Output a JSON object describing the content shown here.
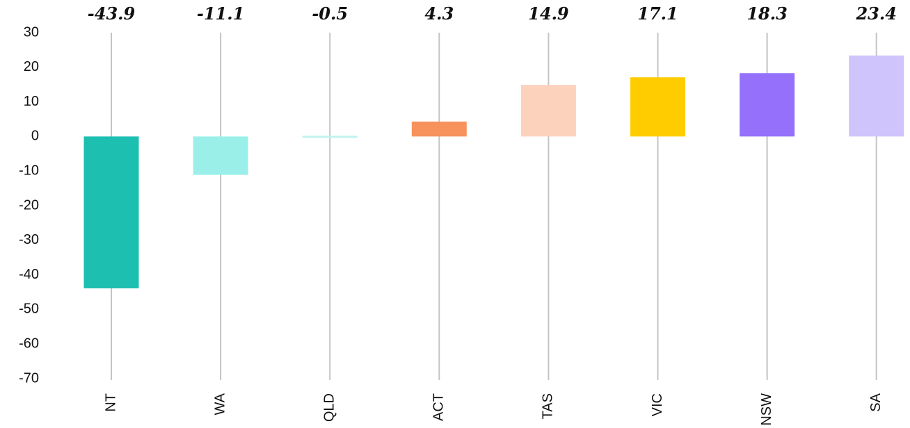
{
  "chart_data": {
    "type": "bar",
    "title": "",
    "xlabel": "",
    "ylabel": "",
    "categories": [
      "NT",
      "WA",
      "QLD",
      "ACT",
      "TAS",
      "VIC",
      "NSW",
      "SA"
    ],
    "values": [
      -43.9,
      -11.1,
      -0.5,
      4.3,
      14.9,
      17.1,
      18.3,
      23.4
    ],
    "value_labels": [
      "-43.9",
      "-11.1",
      "-0.5",
      "4.3",
      "14.9",
      "17.1",
      "18.3",
      "23.4"
    ],
    "colors": [
      "#1dbfb0",
      "#9af0e8",
      "#bff3f0",
      "#f7925d",
      "#fcd2bd",
      "#ffcc00",
      "#9470fb",
      "#d0c4fc"
    ],
    "ylim": [
      -70,
      30
    ],
    "yticks": [
      30,
      20,
      10,
      0,
      -10,
      -20,
      -30,
      -40,
      -50,
      -60,
      -70
    ],
    "grid": false,
    "legend": "none",
    "category_label_orientation": "vertical"
  }
}
